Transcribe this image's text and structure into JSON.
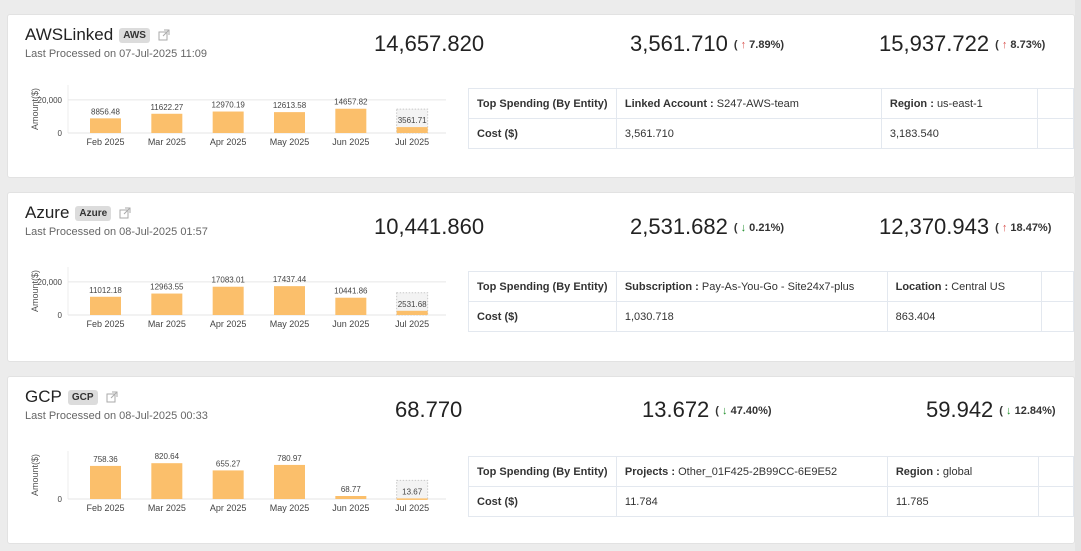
{
  "accent": {
    "bar": "#fbbf6b",
    "up": "#d9534f",
    "down": "#1f8f2a"
  },
  "cards": [
    {
      "name": "AWSLinked",
      "badge": "AWS",
      "last_processed": "Last Processed on 07-Jul-2025 11:09",
      "metric1": "14,657.820",
      "metric2": {
        "value": "3,561.710",
        "open": "(",
        "arrow": "up",
        "change": "7.89%",
        "close": ")"
      },
      "metric3": {
        "value": "15,937.722",
        "open": "(",
        "arrow": "up",
        "change": "8.73%",
        "close": ")"
      },
      "table": {
        "header_label": "Top Spending  (By Entity)",
        "row_label": "Cost ($)",
        "entities": [
          {
            "key": "Linked Account :",
            "value": "S247-AWS-team",
            "cost": "3,561.710"
          },
          {
            "key": "Region :",
            "value": "us-east-1",
            "cost": "3,183.540"
          }
        ]
      }
    },
    {
      "name": "Azure",
      "badge": "Azure",
      "last_processed": "Last Processed on 08-Jul-2025 01:57",
      "metric1": "10,441.860",
      "metric2": {
        "value": "2,531.682",
        "open": "(",
        "arrow": "down",
        "change": "0.21%",
        "close": ")"
      },
      "metric3": {
        "value": "12,370.943",
        "open": "(",
        "arrow": "up",
        "change": "18.47%",
        "close": ")"
      },
      "table": {
        "header_label": "Top Spending  (By Entity)",
        "row_label": "Cost ($)",
        "entities": [
          {
            "key": "Subscription :",
            "value": "Pay-As-You-Go - Site24x7-plus",
            "cost": "1,030.718"
          },
          {
            "key": "Location :",
            "value": "Central US",
            "cost": "863.404"
          }
        ]
      }
    },
    {
      "name": "GCP",
      "badge": "GCP",
      "last_processed": "Last Processed on 08-Jul-2025 00:33",
      "metric1": "68.770",
      "metric2": {
        "value": "13.672",
        "open": "(",
        "arrow": "down",
        "change": "47.40%",
        "close": ")"
      },
      "metric3": {
        "value": "59.942",
        "open": "(",
        "arrow": "down",
        "change": "12.84%",
        "close": ")"
      },
      "table": {
        "header_label": "Top Spending  (By Entity)",
        "row_label": "Cost ($)",
        "entities": [
          {
            "key": "Projects :",
            "value": "Other_01F425-2B99CC-6E9E52",
            "cost": "11.784"
          },
          {
            "key": "Region :",
            "value": "global",
            "cost": "11.785"
          }
        ]
      }
    }
  ],
  "chart_data": [
    {
      "type": "bar",
      "title": "AWSLinked",
      "ylabel": "Amount($)",
      "categories": [
        "Feb 2025",
        "Mar 2025",
        "Apr 2025",
        "May 2025",
        "Jun 2025",
        "Jul 2025"
      ],
      "values": [
        8856.48,
        11622.27,
        12970.19,
        12613.58,
        14657.82,
        3561.71
      ],
      "labels": [
        "8856.48",
        "11622.27",
        "12970.19",
        "12613.58",
        "14657.82",
        "3561.71"
      ],
      "forecast_last": true,
      "yticks": [
        {
          "v": 0,
          "label": "0"
        },
        {
          "v": 20000,
          "label": "20,000"
        }
      ],
      "ylim": [
        0,
        29000
      ]
    },
    {
      "type": "bar",
      "title": "Azure",
      "ylabel": "Amount($)",
      "categories": [
        "Feb 2025",
        "Mar 2025",
        "Apr 2025",
        "May 2025",
        "Jun 2025",
        "Jul 2025"
      ],
      "values": [
        11012.18,
        12963.55,
        17083.01,
        17437.44,
        10441.86,
        2531.68
      ],
      "labels": [
        "11012.18",
        "12963.55",
        "17083.01",
        "17437.44",
        "10441.86",
        "2531.68"
      ],
      "forecast_last": true,
      "yticks": [
        {
          "v": 0,
          "label": "0"
        },
        {
          "v": 20000,
          "label": "20,000"
        }
      ],
      "ylim": [
        0,
        29000
      ]
    },
    {
      "type": "bar",
      "title": "GCP",
      "ylabel": "Amount($)",
      "categories": [
        "Feb 2025",
        "Mar 2025",
        "Apr 2025",
        "May 2025",
        "Jun 2025",
        "Jul 2025"
      ],
      "values": [
        758.36,
        820.64,
        655.27,
        780.97,
        68.77,
        13.67
      ],
      "labels": [
        "758.36",
        "820.64",
        "655.27",
        "780.97",
        "68.77",
        "13.67"
      ],
      "forecast_last": true,
      "yticks": [
        {
          "v": 0,
          "label": "0"
        }
      ],
      "ylim": [
        0,
        1100
      ]
    }
  ]
}
